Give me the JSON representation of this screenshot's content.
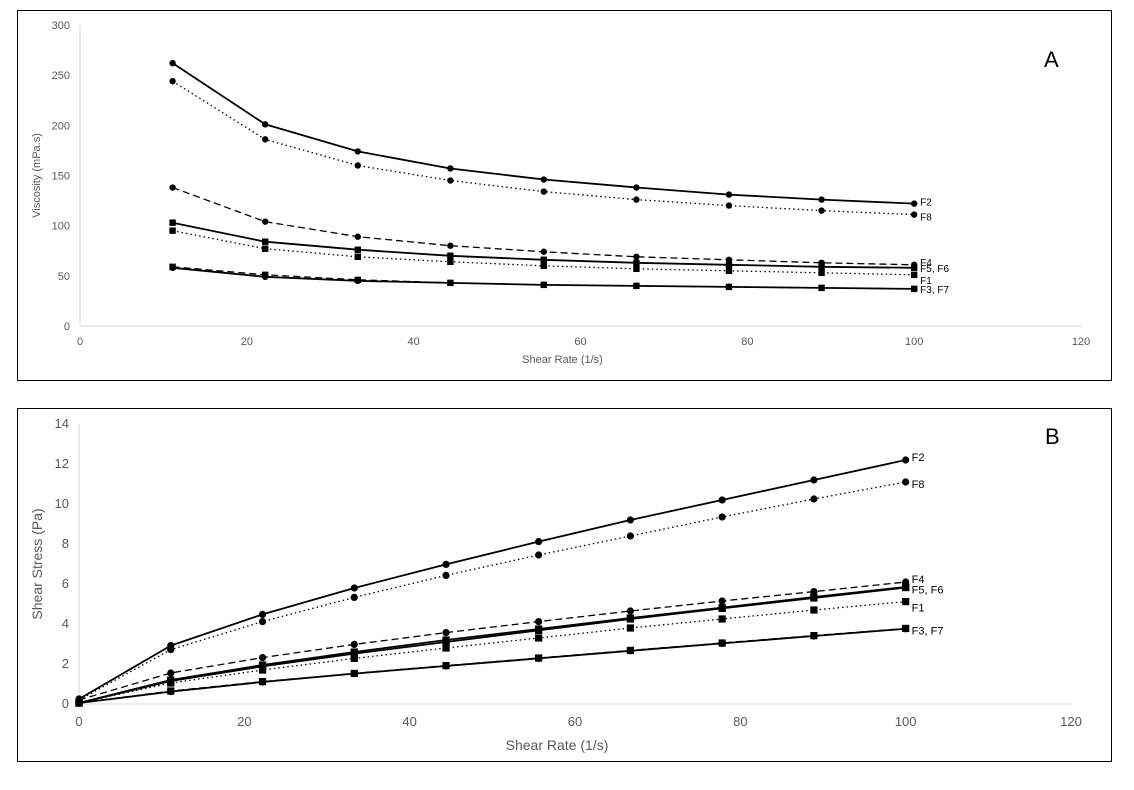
{
  "chart_data": [
    {
      "panel_label": "A",
      "type": "line",
      "xlabel": "Shear Rate (1/s)",
      "ylabel": "Viscosity (mPa.s)",
      "xlim": [
        0,
        120
      ],
      "ylim": [
        0,
        300
      ],
      "xticks": [
        0,
        20,
        40,
        60,
        80,
        100,
        120
      ],
      "yticks": [
        0,
        50,
        100,
        150,
        200,
        250,
        300
      ],
      "grid": false,
      "x": [
        11.1,
        22.2,
        33.3,
        44.4,
        55.6,
        66.7,
        77.8,
        88.9,
        100
      ],
      "series": [
        {
          "name": "F2",
          "marker": "circle",
          "dash": "solid",
          "values": [
            262,
            201,
            174,
            157,
            146,
            138,
            131,
            126,
            122
          ]
        },
        {
          "name": "F8",
          "marker": "circle",
          "dash": "dotted",
          "values": [
            244,
            186,
            160,
            145,
            134,
            126,
            120,
            115,
            111
          ]
        },
        {
          "name": "F4",
          "marker": "circle",
          "dash": "dashed",
          "values": [
            138,
            104,
            89,
            80,
            74,
            69,
            66,
            63,
            61
          ]
        },
        {
          "name": "F5, F6",
          "marker": "square",
          "dash": "solid",
          "values": [
            103,
            84,
            76,
            70,
            66,
            63,
            61,
            59,
            58
          ]
        },
        {
          "name": "F1",
          "marker": "square",
          "dash": "dotted",
          "values": [
            95,
            77,
            69,
            64,
            60,
            57,
            55,
            53,
            51
          ]
        },
        {
          "name": "F3, F7",
          "marker": "square",
          "dash": "dashed",
          "values": [
            59,
            51,
            46,
            43,
            41,
            40,
            39,
            38,
            37
          ]
        },
        {
          "name": "",
          "marker": "circle",
          "dash": "solid",
          "values": [
            58,
            49,
            45,
            43,
            41,
            40,
            39,
            38,
            37
          ]
        }
      ]
    },
    {
      "panel_label": "B",
      "type": "line",
      "xlabel": "Shear Rate (1/s)",
      "ylabel": "Shear Stress (Pa)",
      "xlim": [
        0,
        120
      ],
      "ylim": [
        0,
        14
      ],
      "xticks": [
        0,
        20,
        40,
        60,
        80,
        100,
        120
      ],
      "yticks": [
        0,
        2,
        4,
        6,
        8,
        10,
        12,
        14
      ],
      "grid": false,
      "x": [
        0,
        11.1,
        22.2,
        33.3,
        44.4,
        55.6,
        66.7,
        77.8,
        88.9,
        100
      ],
      "series": [
        {
          "name": "F2",
          "marker": "circle",
          "dash": "solid",
          "values": [
            0.25,
            2.92,
            4.48,
            5.8,
            6.98,
            8.12,
            9.2,
            10.2,
            11.2,
            12.2
          ]
        },
        {
          "name": "F8",
          "marker": "circle",
          "dash": "dotted",
          "values": [
            0.2,
            2.72,
            4.12,
            5.33,
            6.43,
            7.45,
            8.4,
            9.35,
            10.25,
            11.1
          ]
        },
        {
          "name": "F4",
          "marker": "circle",
          "dash": "dashed",
          "values": [
            0.2,
            1.55,
            2.32,
            2.98,
            3.57,
            4.12,
            4.65,
            5.15,
            5.62,
            6.1
          ]
        },
        {
          "name": "F5, F6",
          "marker": "square",
          "dash": "solid",
          "values": [
            0.05,
            1.15,
            1.88,
            2.52,
            3.1,
            3.68,
            4.25,
            4.78,
            5.3,
            5.82
          ]
        },
        {
          "name": "F1",
          "marker": "square",
          "dash": "dotted",
          "values": [
            0.05,
            1.05,
            1.7,
            2.28,
            2.8,
            3.3,
            3.8,
            4.25,
            4.7,
            5.12
          ]
        },
        {
          "name": "F3, F7",
          "marker": "square",
          "dash": "dashed",
          "values": [
            0.05,
            0.65,
            1.12,
            1.53,
            1.92,
            2.3,
            2.68,
            3.05,
            3.42,
            3.78
          ]
        },
        {
          "name": "",
          "marker": "circle",
          "dash": "solid",
          "values": [
            0.05,
            0.62,
            1.1,
            1.52,
            1.9,
            2.28,
            2.66,
            3.03,
            3.4,
            3.76
          ]
        },
        {
          "name": "",
          "marker": "square",
          "dash": "solid",
          "values": [
            0.05,
            1.2,
            1.95,
            2.6,
            3.2,
            3.75,
            4.3,
            4.82,
            5.35,
            5.85
          ]
        }
      ]
    }
  ]
}
